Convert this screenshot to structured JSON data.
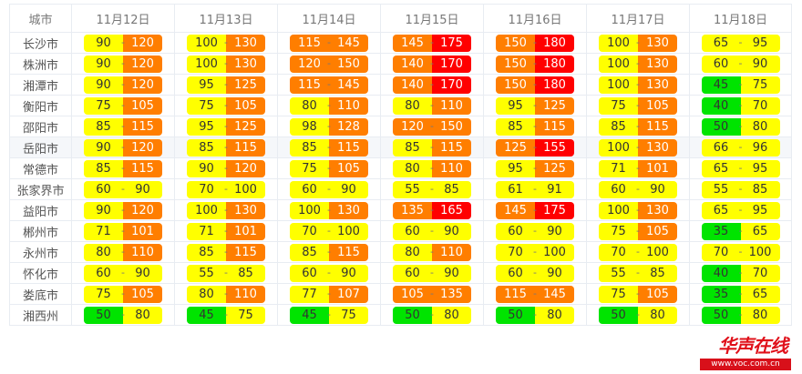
{
  "header": {
    "city": "城市",
    "dates": [
      "11月12日",
      "11月13日",
      "11月14日",
      "11月15日",
      "11月16日",
      "11月17日",
      "11月18日"
    ]
  },
  "colors": {
    "good": "#00e400",
    "moderate": "#ffff00",
    "sensitive": "#ff7e00",
    "unhealthy": "#ff0000"
  },
  "separator": "-",
  "rows": [
    {
      "city": "长沙市",
      "ranges": [
        [
          "90",
          "120"
        ],
        [
          "100",
          "130"
        ],
        [
          "115",
          "145"
        ],
        [
          "145",
          "175"
        ],
        [
          "150",
          "180"
        ],
        [
          "100",
          "130"
        ],
        [
          "65",
          "95"
        ]
      ]
    },
    {
      "city": "株洲市",
      "ranges": [
        [
          "90",
          "120"
        ],
        [
          "100",
          "130"
        ],
        [
          "120",
          "150"
        ],
        [
          "140",
          "170"
        ],
        [
          "150",
          "180"
        ],
        [
          "100",
          "130"
        ],
        [
          "60",
          "90"
        ]
      ]
    },
    {
      "city": "湘潭市",
      "ranges": [
        [
          "90",
          "120"
        ],
        [
          "95",
          "125"
        ],
        [
          "115",
          "145"
        ],
        [
          "140",
          "170"
        ],
        [
          "150",
          "180"
        ],
        [
          "100",
          "130"
        ],
        [
          "45",
          "75"
        ]
      ]
    },
    {
      "city": "衡阳市",
      "ranges": [
        [
          "75",
          "105"
        ],
        [
          "75",
          "105"
        ],
        [
          "80",
          "110"
        ],
        [
          "80",
          "110"
        ],
        [
          "95",
          "125"
        ],
        [
          "75",
          "105"
        ],
        [
          "40",
          "70"
        ]
      ]
    },
    {
      "city": "邵阳市",
      "ranges": [
        [
          "85",
          "115"
        ],
        [
          "95",
          "125"
        ],
        [
          "98",
          "128"
        ],
        [
          "120",
          "150"
        ],
        [
          "85",
          "115"
        ],
        [
          "85",
          "115"
        ],
        [
          "50",
          "80"
        ]
      ]
    },
    {
      "city": "岳阳市",
      "ranges": [
        [
          "90",
          "120"
        ],
        [
          "85",
          "115"
        ],
        [
          "85",
          "115"
        ],
        [
          "85",
          "115"
        ],
        [
          "125",
          "155"
        ],
        [
          "100",
          "130"
        ],
        [
          "66",
          "96"
        ]
      ]
    },
    {
      "city": "常德市",
      "ranges": [
        [
          "85",
          "115"
        ],
        [
          "90",
          "120"
        ],
        [
          "75",
          "105"
        ],
        [
          "80",
          "110"
        ],
        [
          "95",
          "125"
        ],
        [
          "71",
          "101"
        ],
        [
          "65",
          "95"
        ]
      ]
    },
    {
      "city": "张家界市",
      "ranges": [
        [
          "60",
          "90"
        ],
        [
          "70",
          "100"
        ],
        [
          "60",
          "90"
        ],
        [
          "55",
          "85"
        ],
        [
          "61",
          "91"
        ],
        [
          "60",
          "90"
        ],
        [
          "55",
          "85"
        ]
      ]
    },
    {
      "city": "益阳市",
      "ranges": [
        [
          "90",
          "120"
        ],
        [
          "100",
          "130"
        ],
        [
          "100",
          "130"
        ],
        [
          "135",
          "165"
        ],
        [
          "145",
          "175"
        ],
        [
          "100",
          "130"
        ],
        [
          "65",
          "95"
        ]
      ]
    },
    {
      "city": "郴州市",
      "ranges": [
        [
          "71",
          "101"
        ],
        [
          "71",
          "101"
        ],
        [
          "70",
          "100"
        ],
        [
          "60",
          "90"
        ],
        [
          "60",
          "90"
        ],
        [
          "75",
          "105"
        ],
        [
          "35",
          "65"
        ]
      ]
    },
    {
      "city": "永州市",
      "ranges": [
        [
          "80",
          "110"
        ],
        [
          "85",
          "115"
        ],
        [
          "85",
          "115"
        ],
        [
          "80",
          "110"
        ],
        [
          "70",
          "100"
        ],
        [
          "70",
          "100"
        ],
        [
          "70",
          "100"
        ]
      ]
    },
    {
      "city": "怀化市",
      "ranges": [
        [
          "60",
          "90"
        ],
        [
          "55",
          "85"
        ],
        [
          "60",
          "90"
        ],
        [
          "60",
          "90"
        ],
        [
          "60",
          "90"
        ],
        [
          "55",
          "85"
        ],
        [
          "40",
          "70"
        ]
      ]
    },
    {
      "city": "娄底市",
      "ranges": [
        [
          "75",
          "105"
        ],
        [
          "80",
          "110"
        ],
        [
          "77",
          "107"
        ],
        [
          "105",
          "135"
        ],
        [
          "115",
          "145"
        ],
        [
          "75",
          "105"
        ],
        [
          "35",
          "65"
        ]
      ]
    },
    {
      "city": "湘西州",
      "ranges": [
        [
          "50",
          "80"
        ],
        [
          "45",
          "75"
        ],
        [
          "45",
          "75"
        ],
        [
          "50",
          "80"
        ],
        [
          "50",
          "80"
        ],
        [
          "50",
          "80"
        ],
        [
          "50",
          "80"
        ]
      ]
    }
  ],
  "watermark": {
    "logo": "华声在线",
    "url": "www.voc.com.cn"
  }
}
